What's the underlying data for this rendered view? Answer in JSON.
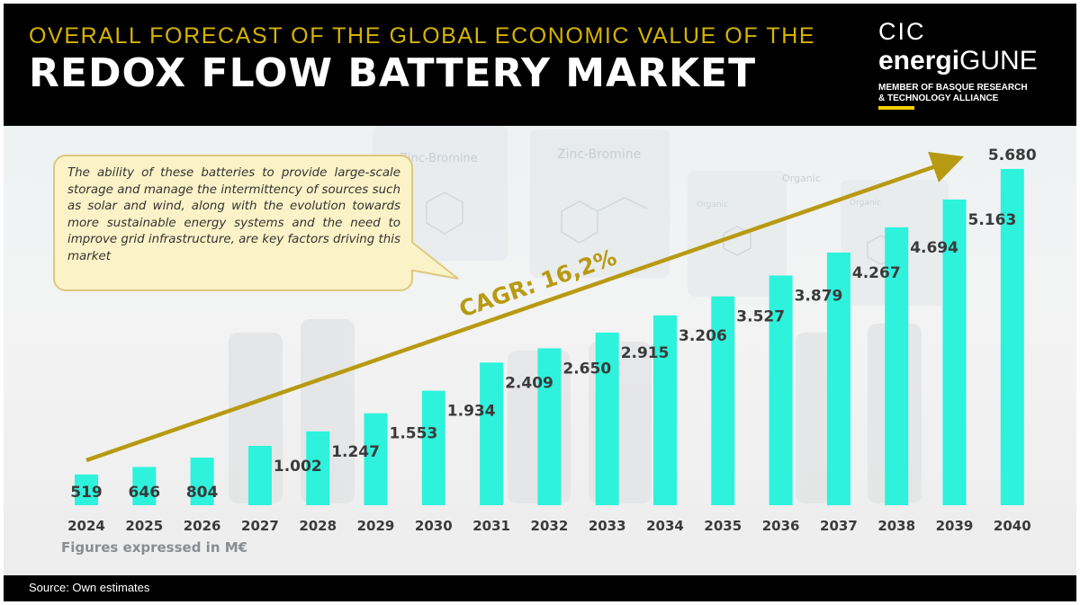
{
  "header": {
    "subtitle": "OVERALL FORECAST OF THE GLOBAL ECONOMIC VALUE OF THE",
    "title": "REDOX FLOW BATTERY MARKET"
  },
  "logo": {
    "cic": "CIC",
    "brand_bold": "energi",
    "brand_rest": "GUNE",
    "member_text": "MEMBER OF BASQUE RESEARCH & TECHNOLOGY ALLIANCE"
  },
  "callout": {
    "text": "The ability of these batteries to provide large-scale storage and manage the intermittency of sources such as solar and wind, along with the evolution towards more sustainable energy systems and the need to improve grid infrastructure, are key factors driving this market"
  },
  "background_labels": [
    "Zinc-Bromine",
    "Zinc-Bromine",
    "Organic",
    "Organic",
    "Organic"
  ],
  "cagr_label": "CAGR: 16,2%",
  "units_note": "Figures expressed in M€",
  "source": "Source: Own estimates",
  "colors": {
    "bar": "#2ef2dc",
    "arrow": "#b89a12",
    "accent": "#d6b300",
    "header_bg": "#000000",
    "callout_bg": "#fbf3c7"
  },
  "chart_data": {
    "type": "bar",
    "categories": [
      "2024",
      "2025",
      "2026",
      "2027",
      "2028",
      "2029",
      "2030",
      "2031",
      "2032",
      "2033",
      "2034",
      "2035",
      "2036",
      "2037",
      "2038",
      "2039",
      "2040"
    ],
    "values": [
      519,
      646,
      804,
      1002,
      1247,
      1553,
      1934,
      2409,
      2650,
      2915,
      3206,
      3527,
      3879,
      4267,
      4694,
      5163,
      5680
    ],
    "value_labels": [
      "519",
      "646",
      "804",
      "1.002",
      "1.247",
      "1.553",
      "1.934",
      "2.409",
      "2.650",
      "2.915",
      "3.206",
      "3.527",
      "3.879",
      "4.267",
      "4.694",
      "5.163",
      "5.680"
    ],
    "title": "REDOX FLOW BATTERY MARKET",
    "xlabel": "",
    "ylabel": "",
    "ylim": [
      0,
      5800
    ],
    "grid": false,
    "legend": "none"
  }
}
